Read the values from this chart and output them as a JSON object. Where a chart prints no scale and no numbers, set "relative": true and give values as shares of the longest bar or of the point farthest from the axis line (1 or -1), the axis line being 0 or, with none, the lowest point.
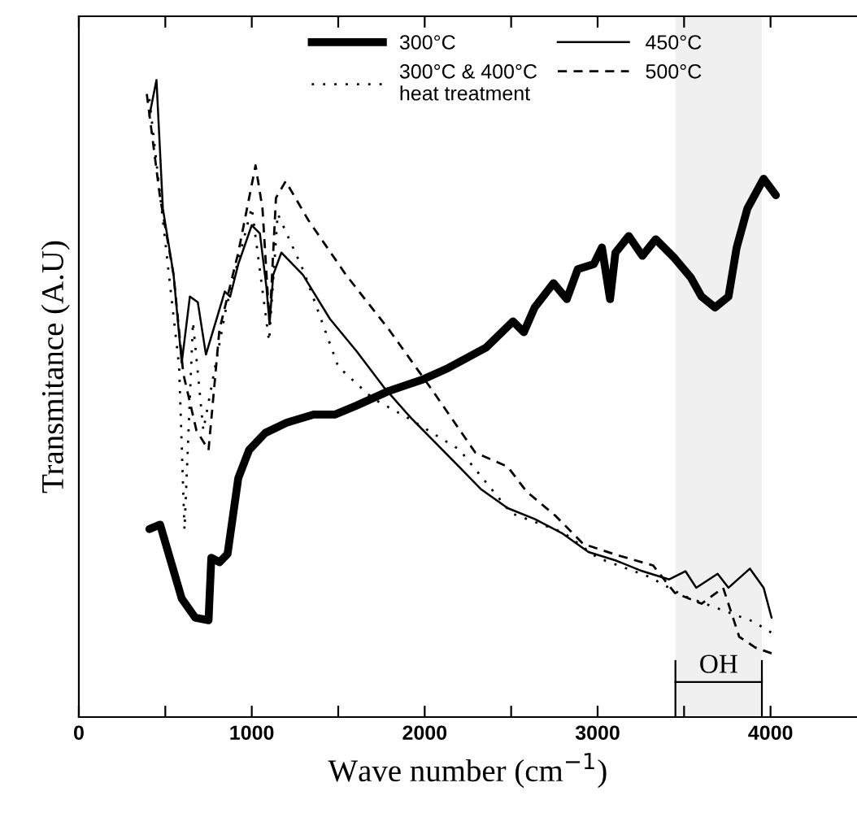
{
  "chart_data": {
    "type": "line",
    "relative": true,
    "xlabel": "Wave number (cm$^{−1}$)",
    "ylabel": "Transmitance (A.U)",
    "xlim": [
      0,
      4500
    ],
    "xticks": [
      0,
      {
        "value": 500,
        "label": null
      },
      1000,
      {
        "value": 1500,
        "label": null
      },
      2000,
      {
        "value": 2500,
        "label": null
      },
      3000,
      {
        "value": 3500,
        "label": null
      },
      4000
    ],
    "grid": false,
    "legend": "top",
    "marker": "none",
    "bands": [
      {
        "axis": "x",
        "from": 3450,
        "to": 3950,
        "label": "OH",
        "color": "#000000"
      }
    ],
    "series": [
      {
        "name": "300°C",
        "color": "#000000",
        "line_style": "solid",
        "x": [
          408,
          470,
          595,
          673,
          750,
          766,
          813,
          860,
          922,
          984,
          1078,
          1202,
          1358,
          1483,
          1607,
          1794,
          1981,
          2137,
          2355,
          2511,
          2573,
          2636,
          2745,
          2822,
          2885,
          2978,
          3025,
          3072,
          3103,
          3180,
          3259,
          3336,
          3446,
          3539,
          3601,
          3679,
          3757,
          3804,
          3866,
          3960,
          4031
        ],
        "values": [
          0.295,
          0.302,
          0.186,
          0.156,
          0.152,
          0.25,
          0.243,
          0.256,
          0.375,
          0.419,
          0.446,
          0.462,
          0.475,
          0.475,
          0.489,
          0.512,
          0.529,
          0.548,
          0.58,
          0.621,
          0.604,
          0.643,
          0.681,
          0.656,
          0.703,
          0.711,
          0.737,
          0.656,
          0.729,
          0.755,
          0.724,
          0.75,
          0.72,
          0.69,
          0.66,
          0.643,
          0.66,
          0.737,
          0.798,
          0.845,
          0.819
        ]
      },
      {
        "name": "300°C & 400°C\nheat treatment",
        "color": "#000000",
        "line_style": "dotted",
        "x": [
          408,
          486,
          580,
          611,
          660,
          720,
          850,
          1000,
          1100,
          1150,
          1300,
          1500,
          1700,
          1900,
          2200,
          2500,
          2800,
          3000,
          3300,
          3500,
          3700,
          3900,
          4020
        ],
        "values": [
          0.97,
          0.78,
          0.55,
          0.294,
          0.62,
          0.45,
          0.64,
          0.8,
          0.59,
          0.79,
          0.7,
          0.55,
          0.5,
          0.47,
          0.42,
          0.32,
          0.29,
          0.25,
          0.22,
          0.19,
          0.17,
          0.15,
          0.13
        ]
      },
      {
        "name": "450°C",
        "color": "#000000",
        "line_style": "solid",
        "x": [
          408,
          449,
          486,
          548,
          595,
          642,
          688,
          735,
          844,
          875,
          922,
          1000,
          1047,
          1084,
          1103,
          1124,
          1171,
          1296,
          1452,
          1607,
          1763,
          1919,
          2199,
          2324,
          2480,
          2636,
          2792,
          2947,
          3103,
          3259,
          3414,
          3508,
          3570,
          3694,
          3757,
          3881,
          3960,
          4006
        ],
        "values": [
          0.944,
          1.0,
          0.798,
          0.694,
          0.556,
          0.66,
          0.651,
          0.569,
          0.668,
          0.66,
          0.711,
          0.772,
          0.759,
          0.677,
          0.617,
          0.694,
          0.729,
          0.694,
          0.625,
          0.574,
          0.518,
          0.47,
          0.393,
          0.358,
          0.328,
          0.311,
          0.289,
          0.259,
          0.246,
          0.229,
          0.216,
          0.229,
          0.203,
          0.225,
          0.203,
          0.233,
          0.203,
          0.156
        ]
      },
      {
        "name": "500°C",
        "color": "#000000",
        "line_style": "dashed",
        "x": [
          393,
          470,
          548,
          604,
          680,
          750,
          813,
          922,
          1022,
          1062,
          1103,
          1140,
          1196,
          1327,
          1545,
          1794,
          2044,
          2293,
          2480,
          2589,
          2760,
          2916,
          3103,
          3321,
          3446,
          3601,
          3726,
          3819,
          3913,
          4006
        ],
        "values": [
          0.978,
          0.815,
          0.694,
          0.539,
          0.45,
          0.419,
          0.608,
          0.729,
          0.866,
          0.798,
          0.617,
          0.815,
          0.841,
          0.78,
          0.694,
          0.608,
          0.513,
          0.415,
          0.393,
          0.354,
          0.315,
          0.272,
          0.255,
          0.238,
          0.195,
          0.178,
          0.203,
          0.126,
          0.109,
          0.1
        ]
      }
    ]
  }
}
